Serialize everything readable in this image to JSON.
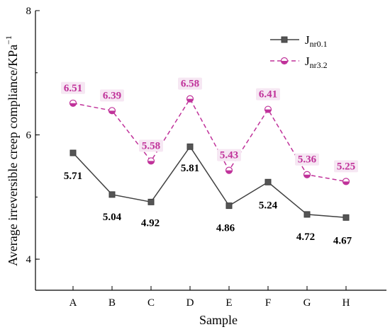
{
  "chart_data": {
    "type": "line",
    "categories": [
      "A",
      "B",
      "C",
      "D",
      "E",
      "F",
      "G",
      "H"
    ],
    "xlabel": "Sample",
    "ylabel": "Average irreversible creep compliance/KPa",
    "ylabel_sup": "−1",
    "ylim": [
      3.5,
      8
    ],
    "yticks": [
      4,
      6,
      8
    ],
    "grid": false,
    "legend_position": "top-right",
    "series": [
      {
        "name": "J",
        "name_sub": "nr0.1",
        "values": [
          5.71,
          5.04,
          4.92,
          5.81,
          4.86,
          5.24,
          4.72,
          4.67
        ],
        "labels": [
          "5.71",
          "5.04",
          "4.92",
          "5.81",
          "4.86",
          "5.24",
          "4.72",
          "4.67"
        ],
        "color": "#404040",
        "line_style": "solid",
        "marker": "square"
      },
      {
        "name": "J",
        "name_sub": "nr3.2",
        "values": [
          6.51,
          6.39,
          5.58,
          6.58,
          5.43,
          6.41,
          5.36,
          5.25
        ],
        "labels": [
          "6.51",
          "6.39",
          "5.58",
          "6.58",
          "5.43",
          "6.41",
          "5.36",
          "5.25"
        ],
        "color": "#c0329a",
        "line_style": "dashed",
        "marker": "half-filled circle"
      }
    ]
  }
}
